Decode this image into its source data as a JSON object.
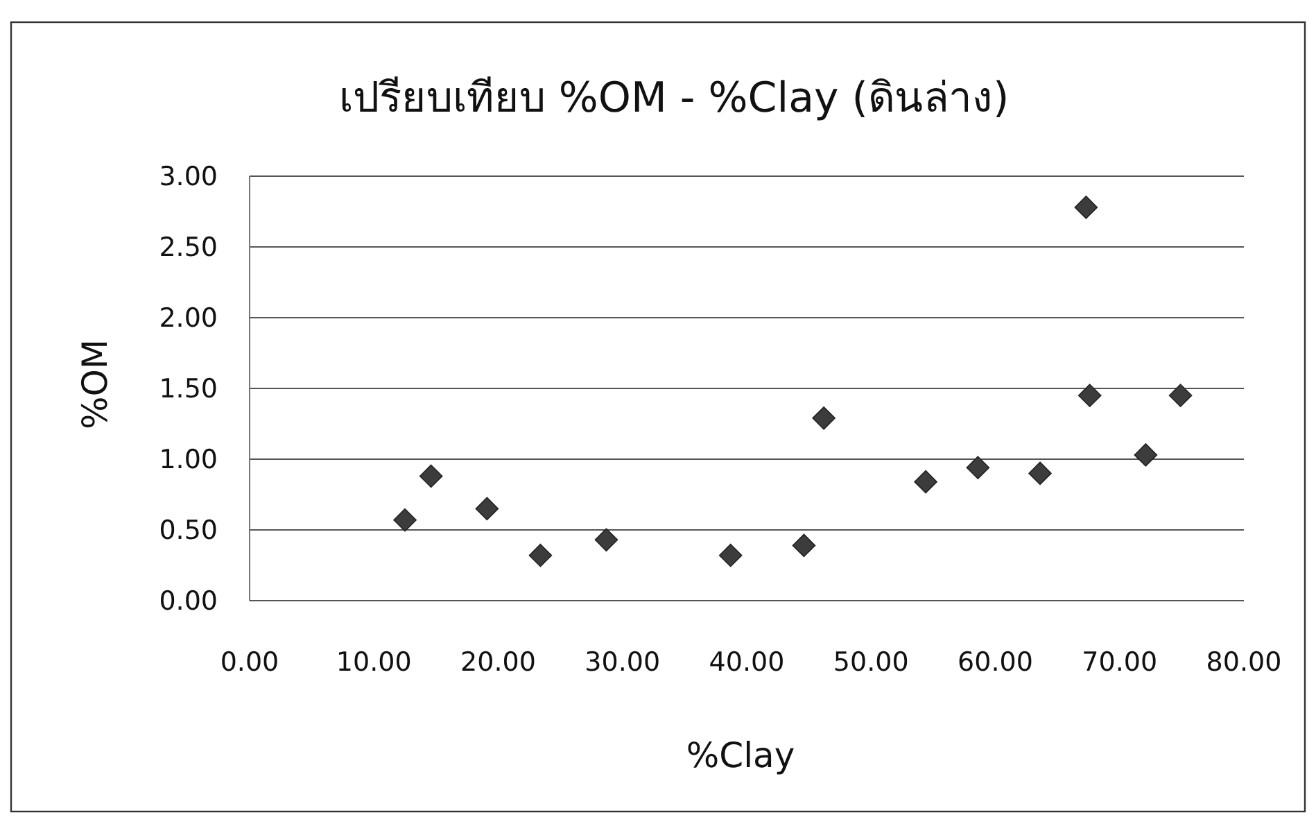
{
  "chart_data": {
    "type": "scatter",
    "title": "เปรียบเทียบ %OM - %Clay (ดินล่าง)",
    "xlabel": "%Clay",
    "ylabel": "%OM",
    "x": [
      12.5,
      14.6,
      19.1,
      23.4,
      28.7,
      38.7,
      44.6,
      46.2,
      54.4,
      58.6,
      63.6,
      67.3,
      67.6,
      72.1,
      74.9
    ],
    "values": [
      0.57,
      0.88,
      0.65,
      0.32,
      0.43,
      0.32,
      0.39,
      1.29,
      0.84,
      0.94,
      0.9,
      2.78,
      1.45,
      1.03,
      1.45
    ],
    "color": "#3c3c3c",
    "marker": "diamond",
    "grid": "y",
    "xlim": [
      0,
      80
    ],
    "xticks": [
      {
        "value": 0,
        "label": "0.00"
      },
      {
        "value": 10,
        "label": "10.00"
      },
      {
        "value": 20,
        "label": "20.00"
      },
      {
        "value": 30,
        "label": "30.00"
      },
      {
        "value": 40,
        "label": "40.00"
      },
      {
        "value": 50,
        "label": "50.00"
      },
      {
        "value": 60,
        "label": "60.00"
      },
      {
        "value": 70,
        "label": "70.00"
      },
      {
        "value": 80,
        "label": "80.00"
      }
    ],
    "ylim": [
      0,
      3
    ],
    "yticks": [
      {
        "value": 0,
        "label": "0.00"
      },
      {
        "value": 0.5,
        "label": "0.50"
      },
      {
        "value": 1,
        "label": "1.00"
      },
      {
        "value": 1.5,
        "label": "1.50"
      },
      {
        "value": 2,
        "label": "2.00"
      },
      {
        "value": 2.5,
        "label": "2.50"
      },
      {
        "value": 3,
        "label": "3.00"
      }
    ]
  }
}
